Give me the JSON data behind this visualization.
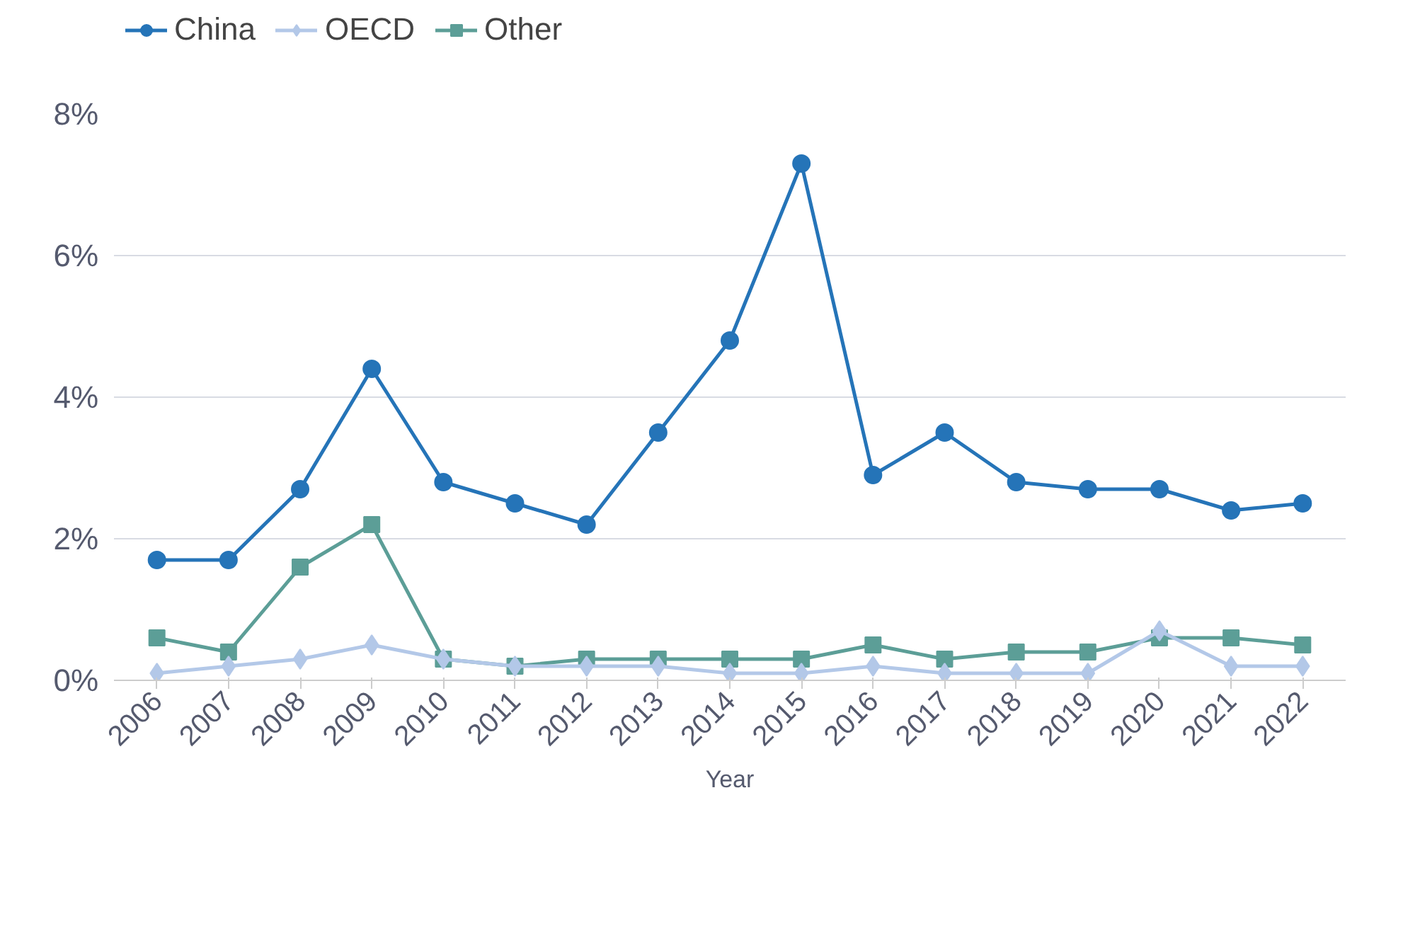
{
  "chart_data": {
    "type": "line",
    "xlabel": "Year",
    "categories": [
      "2006",
      "2007",
      "2008",
      "2009",
      "2010",
      "2011",
      "2012",
      "2013",
      "2014",
      "2015",
      "2016",
      "2017",
      "2018",
      "2019",
      "2020",
      "2021",
      "2022"
    ],
    "series": [
      {
        "name": "China",
        "color": "#2574b8",
        "marker": "circle",
        "values": [
          1.7,
          1.7,
          2.7,
          4.4,
          2.8,
          2.5,
          2.2,
          3.5,
          4.8,
          7.3,
          2.9,
          3.5,
          2.8,
          2.7,
          2.7,
          2.4,
          2.5
        ]
      },
      {
        "name": "OECD",
        "color": "#b3c8e8",
        "marker": "diamond",
        "values": [
          0.1,
          0.2,
          0.3,
          0.5,
          0.3,
          0.2,
          0.2,
          0.2,
          0.1,
          0.1,
          0.2,
          0.1,
          0.1,
          0.1,
          0.7,
          0.2,
          0.2
        ]
      },
      {
        "name": "Other",
        "color": "#5c9e97",
        "marker": "square",
        "values": [
          0.6,
          0.4,
          1.6,
          2.2,
          0.3,
          0.2,
          0.3,
          0.3,
          0.3,
          0.3,
          0.5,
          0.3,
          0.4,
          0.4,
          0.6,
          0.6,
          0.5
        ]
      }
    ],
    "ylim": [
      0,
      8
    ],
    "yticks": [
      {
        "value": 0,
        "label": "0%"
      },
      {
        "value": 2,
        "label": "2%"
      },
      {
        "value": 4,
        "label": "4%"
      },
      {
        "value": 6,
        "label": "6%"
      },
      {
        "value": 8,
        "label": "8%"
      }
    ],
    "grid": "y",
    "legend": "top left",
    "line_style": "solid"
  }
}
